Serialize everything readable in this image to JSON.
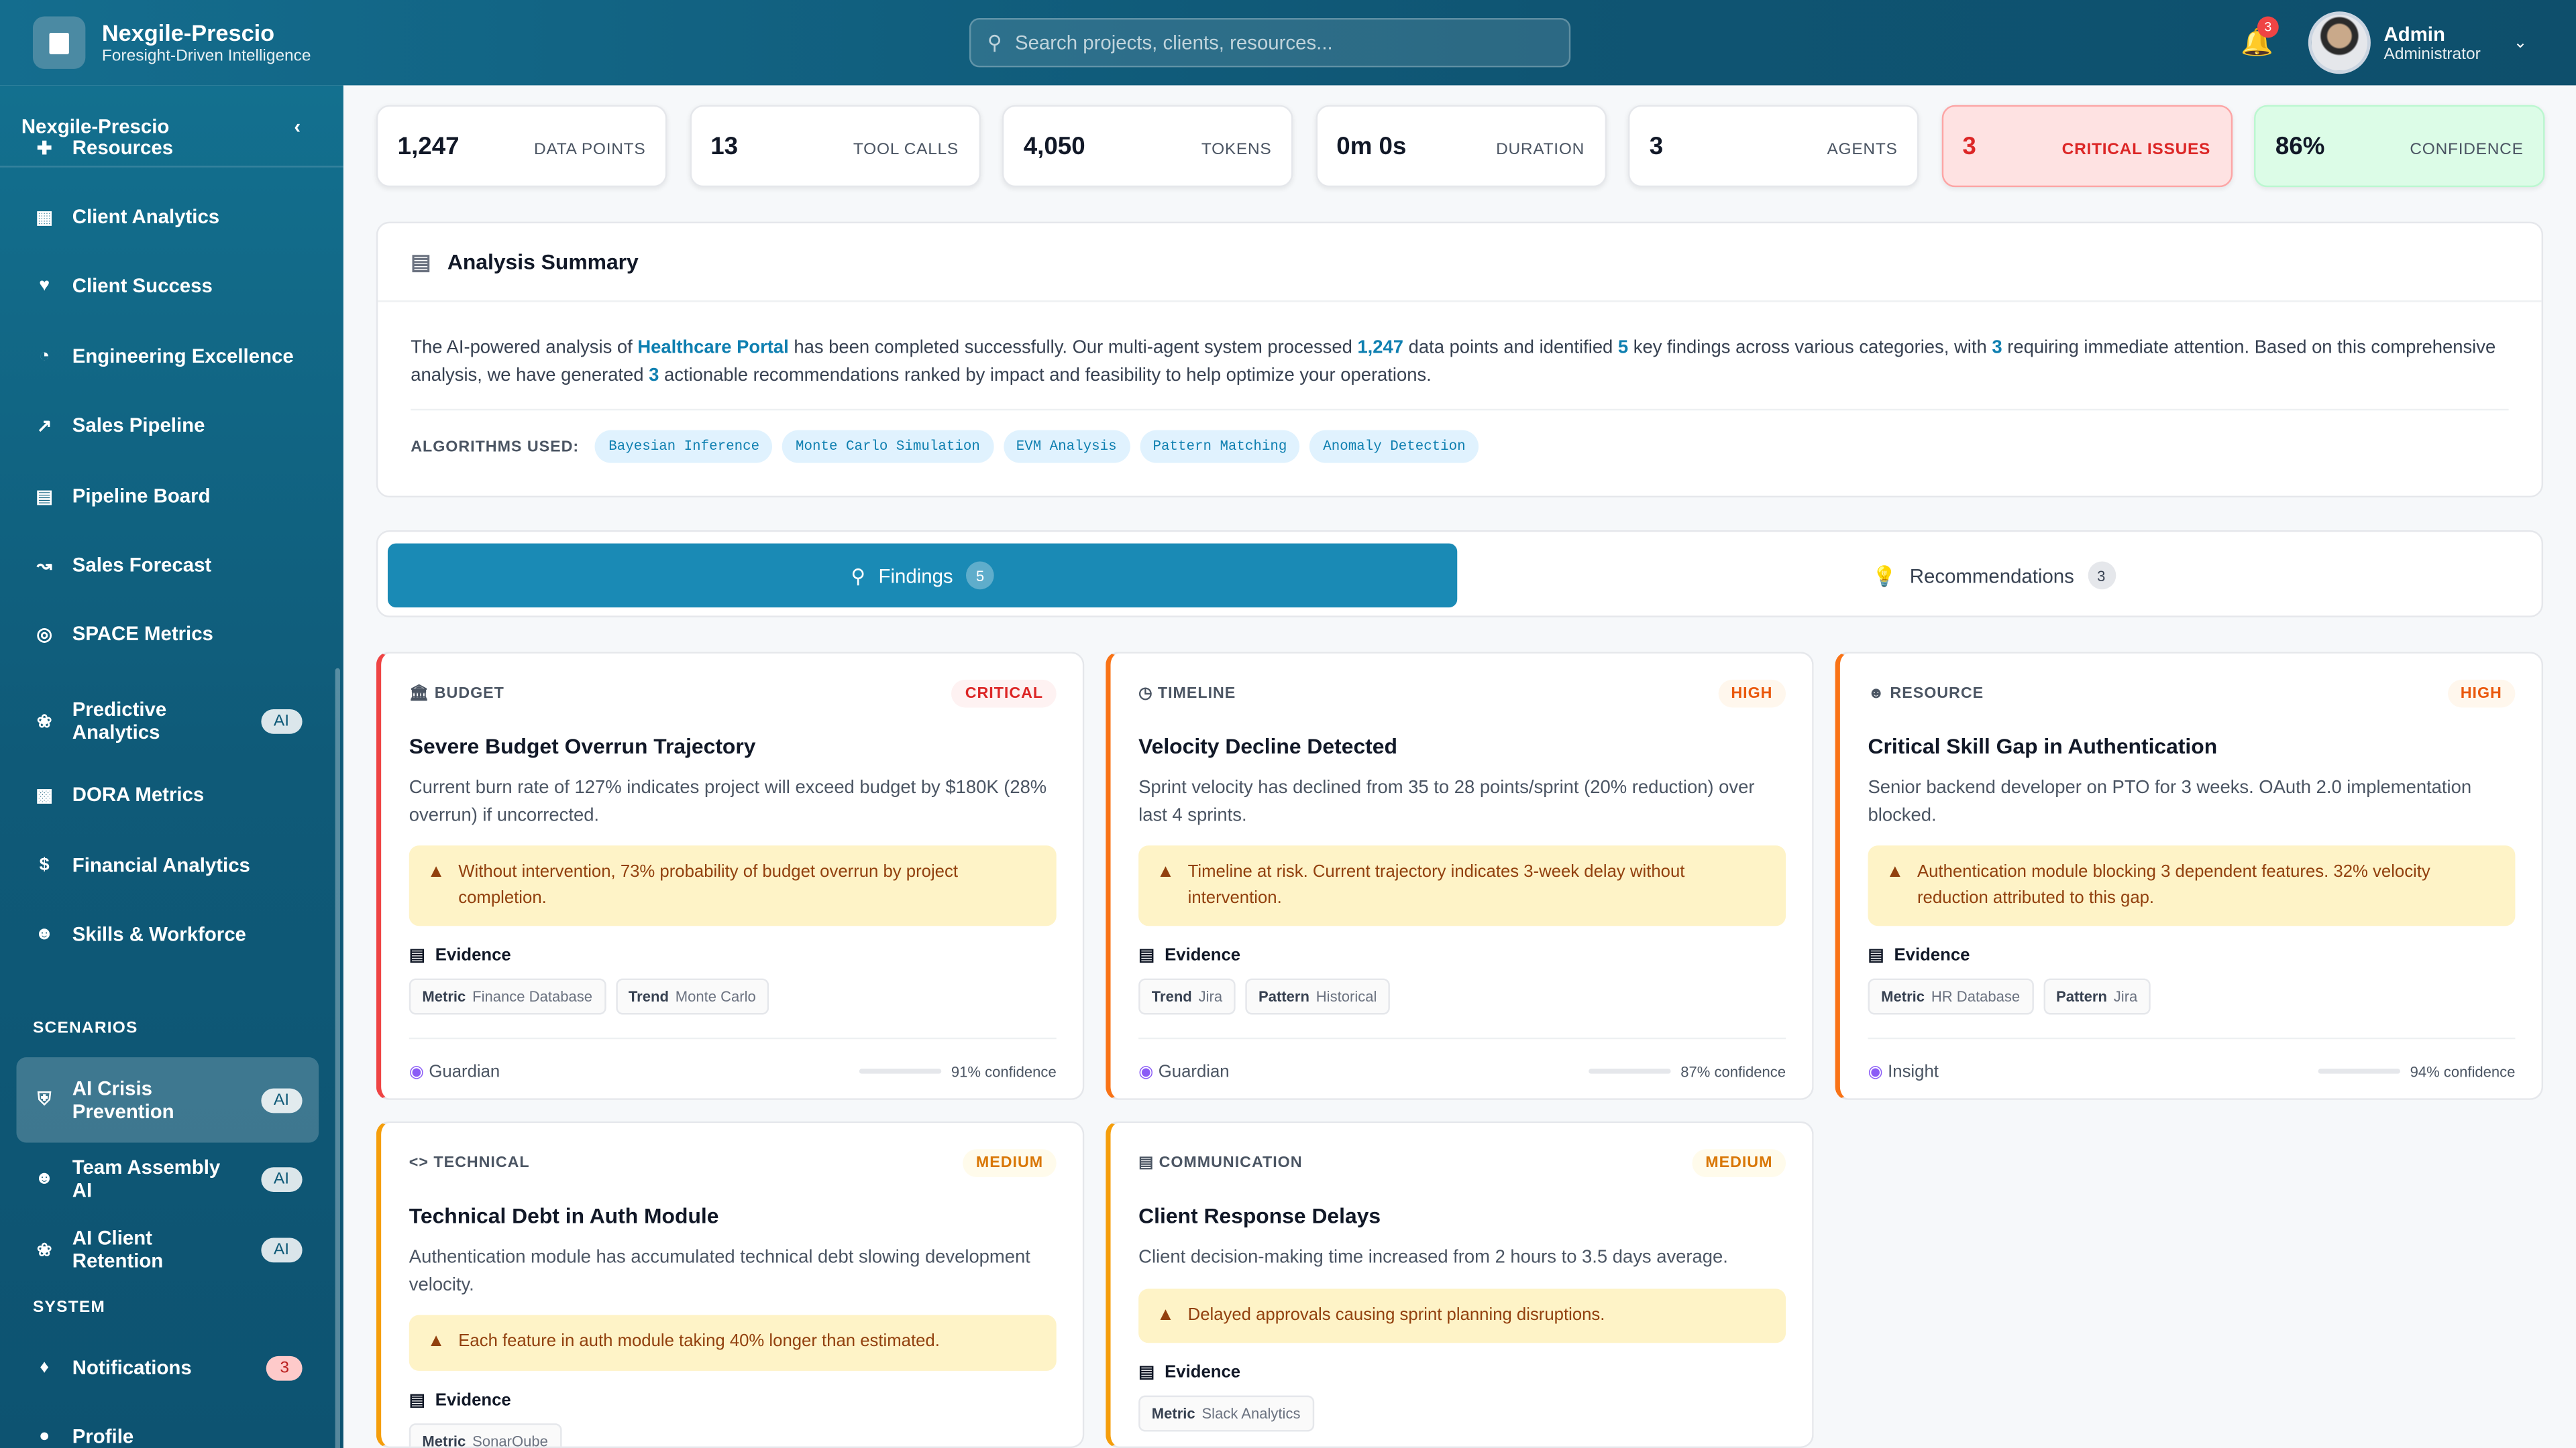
{
  "app": {
    "title": "Nexgile-Prescio",
    "subtitle": "Foresight-Driven Intelligence"
  },
  "search": {
    "placeholder": "Search projects, clients, resources..."
  },
  "notifications": {
    "count": "3"
  },
  "user": {
    "name": "Admin",
    "role": "Administrator"
  },
  "sidebar": {
    "title": "Nexgile-Prescio",
    "items": [
      {
        "label": "Resources",
        "icon": "user-plus-icon"
      },
      {
        "label": "Client Analytics",
        "icon": "building-icon"
      },
      {
        "label": "Client Success",
        "icon": "heart-icon"
      },
      {
        "label": "Engineering Excellence",
        "icon": "gauge-icon"
      },
      {
        "label": "Sales Pipeline",
        "icon": "trend-icon"
      },
      {
        "label": "Pipeline Board",
        "icon": "board-icon"
      },
      {
        "label": "Sales Forecast",
        "icon": "forecast-icon"
      },
      {
        "label": "SPACE Metrics",
        "icon": "target-icon"
      },
      {
        "label": "Predictive Analytics",
        "tag": "AI",
        "icon": "brain-icon"
      },
      {
        "label": "DORA Metrics",
        "icon": "chart-icon"
      },
      {
        "label": "Financial Analytics",
        "icon": "dollar-icon"
      },
      {
        "label": "Skills & Workforce",
        "icon": "users-icon"
      }
    ],
    "scenarios_label": "SCENARIOS",
    "scenarios": [
      {
        "label": "AI Crisis Prevention",
        "tag": "AI",
        "active": true,
        "icon": "shield-icon"
      },
      {
        "label": "Team Assembly AI",
        "tag": "AI",
        "icon": "users-icon"
      },
      {
        "label": "AI Client Retention",
        "tag": "AI",
        "icon": "brain-icon"
      }
    ],
    "system_label": "SYSTEM",
    "system": [
      {
        "label": "Notifications",
        "tag": "3",
        "icon": "bell-icon"
      },
      {
        "label": "Profile",
        "icon": "user-icon"
      }
    ]
  },
  "stats": [
    {
      "value": "1,247",
      "label": "DATA POINTS"
    },
    {
      "value": "13",
      "label": "TOOL CALLS"
    },
    {
      "value": "4,050",
      "label": "TOKENS"
    },
    {
      "value": "0m 0s",
      "label": "DURATION"
    },
    {
      "value": "3",
      "label": "AGENTS"
    },
    {
      "value": "3",
      "label": "CRITICAL ISSUES"
    },
    {
      "value": "86%",
      "label": "CONFIDENCE"
    }
  ],
  "summary": {
    "title": "Analysis Summary",
    "p": [
      "The AI-powered analysis of ",
      "Healthcare Portal",
      " has been completed successfully. Our multi-agent system processed ",
      "1,247",
      " data points and identified ",
      "5",
      " key findings across various categories, with ",
      "3",
      " requiring immediate attention. Based on this comprehensive analysis, we have generated ",
      "3",
      " actionable recommendations ranked by impact and feasibility to help optimize your operations."
    ],
    "algorithms_label": "ALGORITHMS USED:",
    "algorithms": [
      "Bayesian Inference",
      "Monte Carlo Simulation",
      "EVM Analysis",
      "Pattern Matching",
      "Anomaly Detection"
    ]
  },
  "tabs": [
    {
      "label": "Findings",
      "count": "5",
      "active": true
    },
    {
      "label": "Recommendations",
      "count": "3"
    }
  ],
  "findings": [
    {
      "category": "BUDGET",
      "severity": "CRITICAL",
      "title": "Severe Budget Overrun Trajectory",
      "desc": "Current burn rate of 127% indicates project will exceed budget by $180K (28% overrun) if uncorrected.",
      "warning": "Without intervention, 73% probability of budget overrun by project completion.",
      "evidence_label": "Evidence",
      "evidence": [
        {
          "k": "Metric",
          "v": "Finance Database"
        },
        {
          "k": "Trend",
          "v": "Monte Carlo"
        }
      ],
      "agent": "Guardian",
      "confidence": "91% confidence",
      "color": "#ef4444"
    },
    {
      "category": "TIMELINE",
      "severity": "HIGH",
      "title": "Velocity Decline Detected",
      "desc": "Sprint velocity has declined from 35 to 28 points/sprint (20% reduction) over last 4 sprints.",
      "warning": "Timeline at risk. Current trajectory indicates 3-week delay without intervention.",
      "evidence_label": "Evidence",
      "evidence": [
        {
          "k": "Trend",
          "v": "Jira"
        },
        {
          "k": "Pattern",
          "v": "Historical"
        }
      ],
      "agent": "Guardian",
      "confidence": "87% confidence",
      "color": "#f97316"
    },
    {
      "category": "RESOURCE",
      "severity": "HIGH",
      "title": "Critical Skill Gap in Authentication",
      "desc": "Senior backend developer on PTO for 3 weeks. OAuth 2.0 implementation blocked.",
      "warning": "Authentication module blocking 3 dependent features. 32% velocity reduction attributed to this gap.",
      "evidence_label": "Evidence",
      "evidence": [
        {
          "k": "Metric",
          "v": "HR Database"
        },
        {
          "k": "Pattern",
          "v": "Jira"
        }
      ],
      "agent": "Insight",
      "confidence": "94% confidence",
      "color": "#f97316"
    },
    {
      "category": "TECHNICAL",
      "severity": "MEDIUM",
      "title": "Technical Debt in Auth Module",
      "desc": "Authentication module has accumulated technical debt slowing development velocity.",
      "warning": "Each feature in auth module taking 40% longer than estimated.",
      "evidence_label": "Evidence",
      "evidence": [
        {
          "k": "Metric",
          "v": "SonarQube"
        }
      ],
      "color": "#f59e0b"
    },
    {
      "category": "COMMUNICATION",
      "severity": "MEDIUM",
      "title": "Client Response Delays",
      "desc": "Client decision-making time increased from 2 hours to 3.5 days average.",
      "warning": "Delayed approvals causing sprint planning disruptions.",
      "evidence_label": "Evidence",
      "evidence": [
        {
          "k": "Metric",
          "v": "Slack Analytics"
        }
      ],
      "color": "#f59e0b"
    }
  ]
}
